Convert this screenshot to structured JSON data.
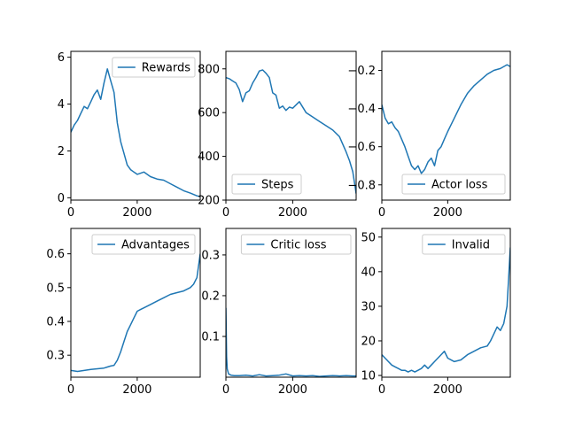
{
  "colors": {
    "series": "#1f77b4"
  },
  "chart_data": [
    {
      "type": "line",
      "legend": "Rewards",
      "legend_loc": "upper right",
      "xlim": [
        0,
        3900
      ],
      "ylim": [
        -0.1,
        6.25
      ],
      "xticks": [
        0,
        2000
      ],
      "yticks": [
        0,
        2,
        4,
        6
      ],
      "series": [
        {
          "name": "Rewards",
          "x": [
            0,
            100,
            200,
            300,
            400,
            500,
            600,
            700,
            800,
            900,
            1000,
            1100,
            1200,
            1300,
            1400,
            1500,
            1600,
            1700,
            1800,
            1900,
            2000,
            2200,
            2400,
            2600,
            2800,
            3000,
            3200,
            3400,
            3600,
            3800,
            3900
          ],
          "y": [
            2.8,
            3.1,
            3.3,
            3.6,
            3.9,
            3.8,
            4.1,
            4.4,
            4.6,
            4.2,
            4.9,
            5.5,
            5.0,
            4.5,
            3.2,
            2.4,
            1.9,
            1.4,
            1.2,
            1.1,
            1.0,
            1.1,
            0.9,
            0.8,
            0.75,
            0.6,
            0.45,
            0.3,
            0.2,
            0.08,
            0.05
          ]
        }
      ]
    },
    {
      "type": "line",
      "legend": "Steps",
      "legend_loc": "lower left",
      "xlim": [
        0,
        3900
      ],
      "ylim": [
        200,
        880
      ],
      "xticks": [
        0,
        2000
      ],
      "yticks": [
        200,
        400,
        600,
        800
      ],
      "series": [
        {
          "name": "Steps",
          "x": [
            0,
            100,
            200,
            300,
            400,
            500,
            600,
            700,
            800,
            900,
            1000,
            1100,
            1200,
            1300,
            1400,
            1500,
            1600,
            1700,
            1800,
            1900,
            2000,
            2200,
            2400,
            2600,
            2800,
            3000,
            3200,
            3400,
            3600,
            3700,
            3800,
            3900
          ],
          "y": [
            760,
            755,
            745,
            735,
            705,
            650,
            690,
            700,
            735,
            760,
            790,
            795,
            780,
            760,
            690,
            680,
            620,
            630,
            610,
            625,
            620,
            650,
            600,
            580,
            560,
            540,
            520,
            490,
            420,
            380,
            330,
            230
          ]
        }
      ]
    },
    {
      "type": "line",
      "legend": "Actor loss",
      "legend_loc": "lower right",
      "xlim": [
        0,
        3900
      ],
      "ylim": [
        -0.88,
        -0.1
      ],
      "xticks": [
        0,
        2000
      ],
      "yticks": [
        -0.8,
        -0.6,
        -0.4,
        -0.2
      ],
      "series": [
        {
          "name": "Actor loss",
          "x": [
            0,
            100,
            200,
            300,
            400,
            500,
            600,
            700,
            800,
            900,
            1000,
            1100,
            1200,
            1300,
            1400,
            1500,
            1600,
            1700,
            1800,
            1900,
            2000,
            2200,
            2400,
            2600,
            2800,
            3000,
            3200,
            3400,
            3600,
            3800,
            3900
          ],
          "y": [
            -0.38,
            -0.45,
            -0.48,
            -0.47,
            -0.5,
            -0.52,
            -0.56,
            -0.6,
            -0.65,
            -0.7,
            -0.72,
            -0.7,
            -0.74,
            -0.72,
            -0.68,
            -0.66,
            -0.7,
            -0.62,
            -0.6,
            -0.56,
            -0.52,
            -0.45,
            -0.38,
            -0.32,
            -0.28,
            -0.25,
            -0.22,
            -0.2,
            -0.19,
            -0.17,
            -0.18
          ]
        }
      ]
    },
    {
      "type": "line",
      "legend": "Advantages",
      "legend_loc": "upper right",
      "xlim": [
        0,
        3900
      ],
      "ylim": [
        0.235,
        0.675
      ],
      "xticks": [
        0,
        2000
      ],
      "yticks": [
        0.3,
        0.4,
        0.5,
        0.6
      ],
      "series": [
        {
          "name": "Advantages",
          "x": [
            0,
            200,
            400,
            600,
            800,
            1000,
            1100,
            1200,
            1300,
            1400,
            1500,
            1600,
            1700,
            1800,
            1900,
            2000,
            2100,
            2200,
            2400,
            2600,
            2800,
            3000,
            3200,
            3400,
            3600,
            3700,
            3800,
            3900
          ],
          "y": [
            0.255,
            0.252,
            0.255,
            0.258,
            0.26,
            0.262,
            0.265,
            0.268,
            0.27,
            0.285,
            0.31,
            0.34,
            0.37,
            0.39,
            0.41,
            0.43,
            0.435,
            0.44,
            0.45,
            0.46,
            0.47,
            0.48,
            0.485,
            0.49,
            0.5,
            0.51,
            0.53,
            0.6
          ]
        }
      ]
    },
    {
      "type": "line",
      "legend": "Critic loss",
      "legend_loc": "upper right",
      "xlim": [
        0,
        3900
      ],
      "ylim": [
        0.0,
        0.365
      ],
      "xticks": [
        0,
        2000
      ],
      "yticks": [
        0.1,
        0.2,
        0.3
      ],
      "series": [
        {
          "name": "Critic loss",
          "x": [
            0,
            20,
            40,
            80,
            150,
            250,
            400,
            600,
            800,
            1000,
            1200,
            1400,
            1600,
            1800,
            2000,
            2200,
            2400,
            2600,
            2800,
            3000,
            3200,
            3400,
            3600,
            3800,
            3900
          ],
          "y": [
            0.17,
            0.05,
            0.02,
            0.008,
            0.005,
            0.004,
            0.004,
            0.005,
            0.003,
            0.006,
            0.003,
            0.004,
            0.005,
            0.008,
            0.003,
            0.004,
            0.003,
            0.004,
            0.002,
            0.003,
            0.004,
            0.003,
            0.004,
            0.003,
            0.003
          ]
        }
      ]
    },
    {
      "type": "line",
      "legend": "Invalid",
      "legend_loc": "upper right",
      "xlim": [
        0,
        3900
      ],
      "ylim": [
        9.5,
        52.5
      ],
      "xticks": [
        0,
        2000
      ],
      "yticks": [
        10,
        20,
        30,
        40,
        50
      ],
      "series": [
        {
          "name": "Invalid",
          "x": [
            0,
            100,
            200,
            300,
            400,
            500,
            600,
            700,
            800,
            900,
            1000,
            1100,
            1200,
            1300,
            1400,
            1500,
            1600,
            1700,
            1800,
            1900,
            2000,
            2200,
            2400,
            2600,
            2800,
            3000,
            3200,
            3300,
            3400,
            3500,
            3600,
            3700,
            3800,
            3850,
            3900
          ],
          "y": [
            16,
            15,
            14,
            13,
            12.5,
            12,
            11.5,
            11.5,
            11,
            11.5,
            11,
            11.5,
            12,
            13,
            12,
            13,
            14,
            15,
            16,
            17,
            15,
            14,
            14.5,
            16,
            17,
            18,
            18.5,
            20,
            22,
            24,
            23,
            25,
            30,
            38,
            47
          ]
        }
      ]
    }
  ]
}
